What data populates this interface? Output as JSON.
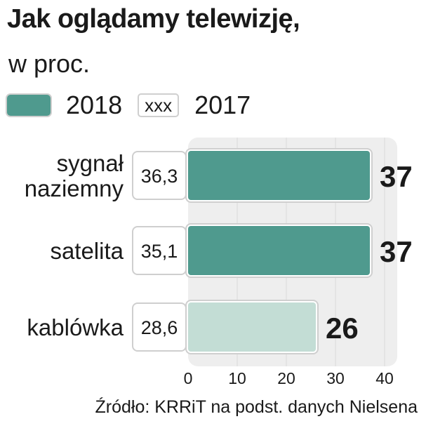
{
  "title": "Jak oglądamy telewizję,",
  "subtitle": "w proc.",
  "legend": {
    "current_label": "2018",
    "previous_label": "2017",
    "previous_box_text": "xxx"
  },
  "source": "Źródło:  KRRiT na podst. danych Nielsena",
  "colors": {
    "bar_2018": "#4f9a8e",
    "bar_kablowka": "#c3ddd5",
    "plot_bg": "#eeeeee",
    "box_border": "#cfcfcf"
  },
  "chart_data": {
    "type": "bar",
    "orientation": "horizontal",
    "categories": [
      "sygnał naziemny",
      "satelita",
      "kablówka"
    ],
    "category_lines": [
      [
        "sygnał",
        "naziemny"
      ],
      [
        "satelita"
      ],
      [
        "kablówka"
      ]
    ],
    "series": [
      {
        "name": "2018",
        "values": [
          37,
          37,
          26
        ]
      },
      {
        "name": "2017",
        "values": [
          36.3,
          35.1,
          28.6
        ]
      }
    ],
    "value_labels_2018": [
      "37",
      "37",
      "26"
    ],
    "value_labels_2017": [
      "36,3",
      "35,1",
      "28,6"
    ],
    "xlim": [
      0,
      40
    ],
    "xticks": [
      0,
      10,
      20,
      30,
      40
    ],
    "xtick_labels": [
      "0",
      "10",
      "20",
      "30",
      "40"
    ],
    "grid": true
  }
}
